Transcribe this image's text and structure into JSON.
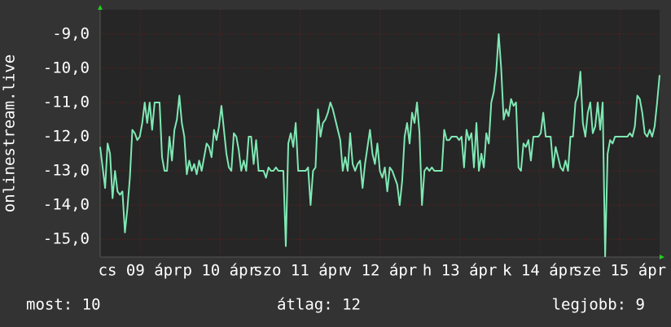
{
  "chart_data": {
    "type": "line",
    "y_label": "onlinestream.live",
    "ylim": [
      -15.52,
      -8.29
    ],
    "yticks": [
      {
        "value": -9,
        "label": "-9,0"
      },
      {
        "value": -10,
        "label": "-10,0"
      },
      {
        "value": -11,
        "label": "-11,0"
      },
      {
        "value": -12,
        "label": "-12,0"
      },
      {
        "value": -13,
        "label": "-13,0"
      },
      {
        "value": -14,
        "label": "-14,0"
      },
      {
        "value": -15,
        "label": "-15,0"
      }
    ],
    "xlim": [
      0,
      7
    ],
    "xticks": [
      {
        "value": 0.5,
        "label": "cs 09 ápr"
      },
      {
        "value": 1.5,
        "label": "p 10 ápr"
      },
      {
        "value": 2.5,
        "label": "szo 11 ápr"
      },
      {
        "value": 3.5,
        "label": "v 12 ápr"
      },
      {
        "value": 4.5,
        "label": "h 13 ápr"
      },
      {
        "value": 5.5,
        "label": "k 14 ápr"
      },
      {
        "value": 6.5,
        "label": "sze 15 ápr"
      }
    ],
    "grid": true,
    "series": [
      {
        "color": "#7fe8b4",
        "values": [
          -12.3,
          -12.9,
          -13.5,
          -12.2,
          -12.5,
          -13.8,
          -13.0,
          -13.6,
          -13.7,
          -13.6,
          -14.8,
          -14.1,
          -13.2,
          -11.8,
          -11.9,
          -12.1,
          -12.0,
          -11.6,
          -11.0,
          -11.6,
          -11.0,
          -11.8,
          -11.0,
          -11.0,
          -11.0,
          -12.6,
          -13.0,
          -13.0,
          -12.0,
          -12.7,
          -11.8,
          -11.5,
          -10.8,
          -11.6,
          -12.0,
          -13.1,
          -12.7,
          -13.0,
          -12.8,
          -13.1,
          -12.7,
          -13.0,
          -12.6,
          -12.2,
          -12.3,
          -12.6,
          -11.8,
          -12.1,
          -11.7,
          -11.1,
          -11.8,
          -12.5,
          -12.9,
          -13.0,
          -11.9,
          -12.0,
          -12.4,
          -13.0,
          -12.7,
          -13.0,
          -12.0,
          -12.0,
          -12.8,
          -12.1,
          -13.0,
          -13.0,
          -13.0,
          -13.2,
          -12.9,
          -13.0,
          -13.0,
          -12.9,
          -13.0,
          -13.0,
          -13.0,
          -15.2,
          -12.2,
          -11.9,
          -12.3,
          -11.6,
          -13.0,
          -13.0,
          -13.0,
          -13.0,
          -12.9,
          -14.0,
          -13.0,
          -12.9,
          -11.2,
          -12.0,
          -11.6,
          -11.5,
          -11.3,
          -11.0,
          -11.2,
          -11.5,
          -11.8,
          -12.1,
          -13.0,
          -12.6,
          -13.0,
          -11.9,
          -12.8,
          -13.0,
          -12.8,
          -12.7,
          -13.5,
          -12.8,
          -12.3,
          -11.8,
          -12.5,
          -12.8,
          -12.2,
          -13.0,
          -13.2,
          -12.9,
          -13.6,
          -12.9,
          -13.0,
          -13.2,
          -13.4,
          -14.0,
          -13.3,
          -12.0,
          -11.6,
          -12.2,
          -11.3,
          -11.6,
          -11.0,
          -11.9,
          -14.0,
          -13.0,
          -12.9,
          -13.0,
          -12.9,
          -13.0,
          -13.0,
          -13.0,
          -13.0,
          -11.8,
          -12.1,
          -12.1,
          -12.0,
          -12.0,
          -12.0,
          -12.1,
          -12.0,
          -12.9,
          -11.8,
          -12.1,
          -11.9,
          -12.9,
          -11.6,
          -13.0,
          -12.5,
          -12.9,
          -11.9,
          -12.2,
          -11.0,
          -10.7,
          -10.1,
          -9.0,
          -10.0,
          -11.5,
          -11.2,
          -11.4,
          -10.9,
          -11.1,
          -11.0,
          -12.9,
          -13.0,
          -12.2,
          -12.3,
          -12.1,
          -12.7,
          -12.0,
          -12.0,
          -12.0,
          -11.9,
          -11.3,
          -12.0,
          -12.0,
          -12.0,
          -12.9,
          -12.3,
          -12.6,
          -12.9,
          -13.0,
          -12.7,
          -13.0,
          -12.0,
          -12.0,
          -11.0,
          -10.8,
          -10.1,
          -11.6,
          -12.0,
          -11.3,
          -11.0,
          -11.9,
          -11.7,
          -11.0,
          -11.8,
          -11.0,
          -15.5,
          -12.5,
          -12.1,
          -12.2,
          -12.0,
          -12.0,
          -12.0,
          -12.0,
          -12.0,
          -12.0,
          -11.9,
          -12.0,
          -11.7,
          -10.8,
          -10.9,
          -11.3,
          -11.9,
          -12.0,
          -11.8,
          -12.0,
          -11.7,
          -11.0,
          -10.2
        ]
      }
    ],
    "footer": [
      "most: 10",
      "átlag: 12",
      "legjobb: 9"
    ]
  }
}
